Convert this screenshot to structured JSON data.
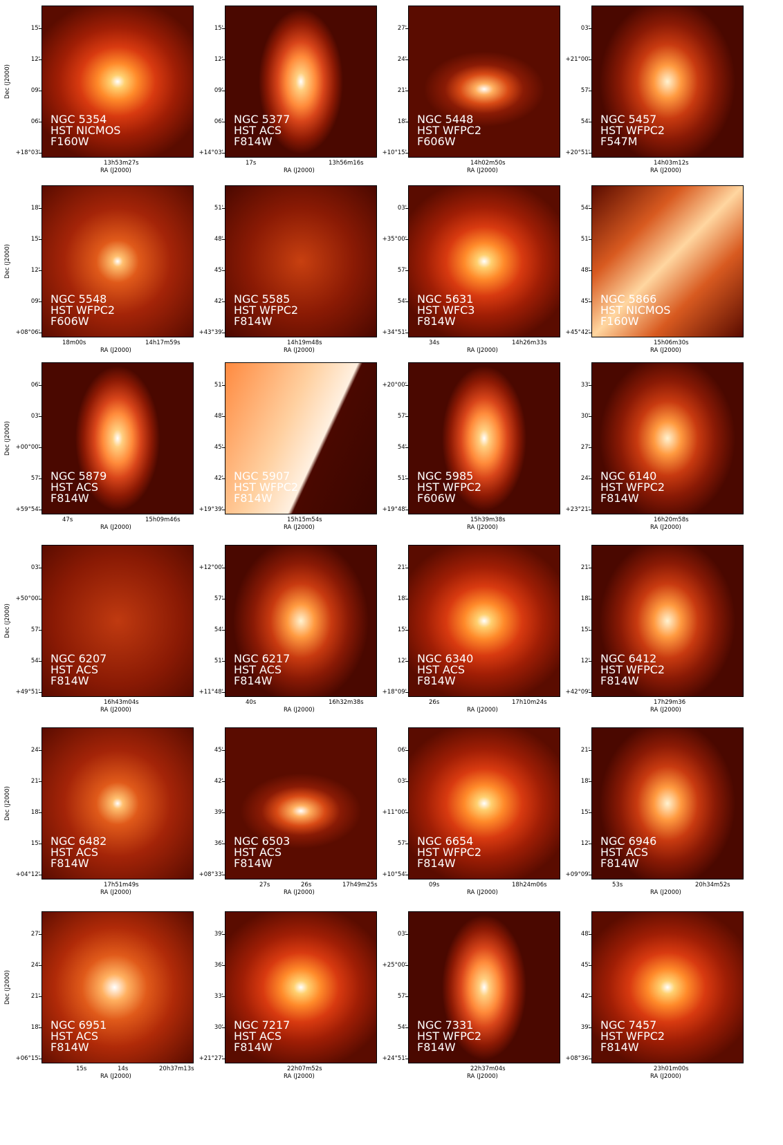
{
  "axis": {
    "xlabel": "RA (J2000)",
    "ylabel": "Dec (J2000)"
  },
  "panels": [
    {
      "name": "NGC 5354",
      "instrument": "HST NICMOS",
      "filter": "F160W",
      "yticks": [
        "15'",
        "12'",
        "09'",
        "06'",
        "+18°03'"
      ],
      "xticks": [
        "13h53m27s"
      ],
      "style": "smooth"
    },
    {
      "name": "NGC 5377",
      "instrument": "HST ACS",
      "filter": "F814W",
      "yticks": [
        "15'",
        "12'",
        "09'",
        "06'",
        "+14°03'"
      ],
      "xticks": [
        "17s",
        "13h56m16s"
      ],
      "style": "disk"
    },
    {
      "name": "NGC 5448",
      "instrument": "HST WFPC2",
      "filter": "F606W",
      "yticks": [
        "27'",
        "24'",
        "21'",
        "18'",
        "+10°15'"
      ],
      "xticks": [
        "14h02m50s"
      ],
      "style": "dusty"
    },
    {
      "name": "NGC 5457",
      "instrument": "HST WFPC2",
      "filter": "F547M",
      "yticks": [
        "03'",
        "+21°00'",
        "57'",
        "54'",
        "+20°51'"
      ],
      "xticks": [
        "14h03m12s"
      ],
      "style": "clumpy"
    },
    {
      "name": "NGC 5548",
      "instrument": "HST WFPC2",
      "filter": "F606W",
      "yticks": [
        "18'",
        "15'",
        "12'",
        "09'",
        "+08°06'"
      ],
      "xticks": [
        "18m00s",
        "14h17m59s"
      ],
      "style": "star"
    },
    {
      "name": "NGC 5585",
      "instrument": "HST WFPC2",
      "filter": "F814W",
      "yticks": [
        "51'",
        "48'",
        "45'",
        "42'",
        "+43°39'"
      ],
      "xticks": [
        "14h19m48s"
      ],
      "style": "grainy"
    },
    {
      "name": "NGC 5631",
      "instrument": "HST WFC3",
      "filter": "F814W",
      "yticks": [
        "03'",
        "+35°00'",
        "57'",
        "54'",
        "+34°51'"
      ],
      "xticks": [
        "34s",
        "14h26m33s"
      ],
      "style": "smooth"
    },
    {
      "name": "NGC 5866",
      "instrument": "HST NICMOS",
      "filter": "F160W",
      "yticks": [
        "54'",
        "51'",
        "48'",
        "45'",
        "+45°42'"
      ],
      "xticks": [
        "15h06m30s"
      ],
      "style": "edgeon"
    },
    {
      "name": "NGC 5879",
      "instrument": "HST ACS",
      "filter": "F814W",
      "yticks": [
        "06'",
        "03'",
        "+00°00'",
        "57'",
        "+59°54'"
      ],
      "xticks": [
        "47s",
        "15h09m46s"
      ],
      "style": "disk"
    },
    {
      "name": "NGC 5907",
      "instrument": "HST WFPC2",
      "filter": "F814W",
      "yticks": [
        "51'",
        "48'",
        "45'",
        "42'",
        "+19°39'"
      ],
      "xticks": [
        "15h15m54s"
      ],
      "style": "bright"
    },
    {
      "name": "NGC 5985",
      "instrument": "HST WFPC2",
      "filter": "F606W",
      "yticks": [
        "+20°00'",
        "57'",
        "54'",
        "51'",
        "+19°48'"
      ],
      "xticks": [
        "15h39m38s"
      ],
      "style": "disk"
    },
    {
      "name": "NGC 6140",
      "instrument": "HST WFPC2",
      "filter": "F814W",
      "yticks": [
        "33'",
        "30'",
        "27'",
        "24'",
        "+23°21'"
      ],
      "xticks": [
        "16h20m58s"
      ],
      "style": "clumpy"
    },
    {
      "name": "NGC 6207",
      "instrument": "HST ACS",
      "filter": "F814W",
      "yticks": [
        "03'",
        "+50°00'",
        "57'",
        "54'",
        "+49°51'"
      ],
      "xticks": [
        "16h43m04s"
      ],
      "style": "faint"
    },
    {
      "name": "NGC 6217",
      "instrument": "HST ACS",
      "filter": "F814W",
      "yticks": [
        "+12°00'",
        "57'",
        "54'",
        "51'",
        "+11°48'"
      ],
      "xticks": [
        "40s",
        "16h32m38s"
      ],
      "style": "clumpy"
    },
    {
      "name": "NGC 6340",
      "instrument": "HST ACS",
      "filter": "F814W",
      "yticks": [
        "21'",
        "18'",
        "15'",
        "12'",
        "+18°09'"
      ],
      "xticks": [
        "26s",
        "17h10m24s"
      ],
      "style": "smooth"
    },
    {
      "name": "NGC 6412",
      "instrument": "HST WFPC2",
      "filter": "F814W",
      "yticks": [
        "21'",
        "18'",
        "15'",
        "12'",
        "+42°09'"
      ],
      "xticks": [
        "17h29m36"
      ],
      "style": "clumpy"
    },
    {
      "name": "NGC 6482",
      "instrument": "HST ACS",
      "filter": "F814W",
      "yticks": [
        "24'",
        "21'",
        "18'",
        "15'",
        "+04°12'"
      ],
      "xticks": [
        "17h51m49s"
      ],
      "style": "star"
    },
    {
      "name": "NGC 6503",
      "instrument": "HST ACS",
      "filter": "F814W",
      "yticks": [
        "45'",
        "42'",
        "39'",
        "36'",
        "+08°33'"
      ],
      "xticks": [
        "27s",
        "26s",
        "17h49m25s"
      ],
      "style": "dusty"
    },
    {
      "name": "NGC 6654",
      "instrument": "HST WFPC2",
      "filter": "F814W",
      "yticks": [
        "06'",
        "03'",
        "+11°00'",
        "57'",
        "+10°54'"
      ],
      "xticks": [
        "09s",
        "18h24m06s"
      ],
      "style": "smooth"
    },
    {
      "name": "NGC 6946",
      "instrument": "HST ACS",
      "filter": "F814W",
      "yticks": [
        "21'",
        "18'",
        "15'",
        "12'",
        "+09°09'"
      ],
      "xticks": [
        "53s",
        "20h34m52s"
      ],
      "style": "clumpy"
    },
    {
      "name": "NGC 6951",
      "instrument": "HST ACS",
      "filter": "F814W",
      "yticks": [
        "27'",
        "24'",
        "21'",
        "18'",
        "+06°15'"
      ],
      "xticks": [
        "15s",
        "14s",
        "20h37m13s"
      ],
      "style": "spiral"
    },
    {
      "name": "NGC 7217",
      "instrument": "HST ACS",
      "filter": "F814W",
      "yticks": [
        "39'",
        "36'",
        "33'",
        "30'",
        "+21°27'"
      ],
      "xticks": [
        "22h07m52s"
      ],
      "style": "smooth"
    },
    {
      "name": "NGC 7331",
      "instrument": "HST WFPC2",
      "filter": "F814W",
      "yticks": [
        "03'",
        "+25°00'",
        "57'",
        "54'",
        "+24°51'"
      ],
      "xticks": [
        "22h37m04s"
      ],
      "style": "disk"
    },
    {
      "name": "NGC 7457",
      "instrument": "HST WFPC2",
      "filter": "F814W",
      "yticks": [
        "48'",
        "45'",
        "42'",
        "39'",
        "+08°36'"
      ],
      "xticks": [
        "23h01m00s"
      ],
      "style": "smooth"
    }
  ]
}
